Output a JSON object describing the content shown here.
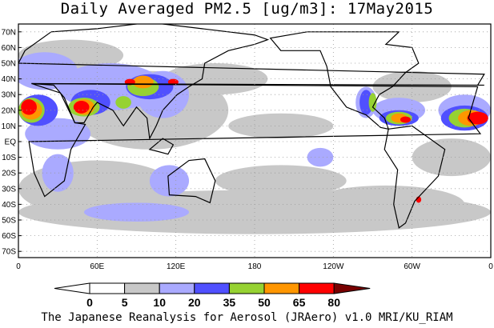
{
  "title": "Daily Averaged PM2.5 [ug/m3]: 17May2015",
  "footer": "The Japanese Reanalysis for Aerosol (JRAero) v1.0 MRI/KU_RIAM",
  "map": {
    "lat_labels": [
      "70N",
      "60N",
      "50N",
      "40N",
      "30N",
      "20N",
      "10N",
      "EQ",
      "10S",
      "20S",
      "30S",
      "40S",
      "50S",
      "60S",
      "70S"
    ],
    "lon_labels": [
      "0",
      "60E",
      "120E",
      "180",
      "120W",
      "60W",
      "0"
    ]
  },
  "colorbar": {
    "levels": [
      "0",
      "5",
      "10",
      "20",
      "35",
      "50",
      "65",
      "80"
    ],
    "colors": [
      "#ffffff",
      "#ffffff",
      "#c8c8c8",
      "#aaaaff",
      "#5050ff",
      "#96d232",
      "#ff9600",
      "#ff0000",
      "#780000"
    ]
  }
}
